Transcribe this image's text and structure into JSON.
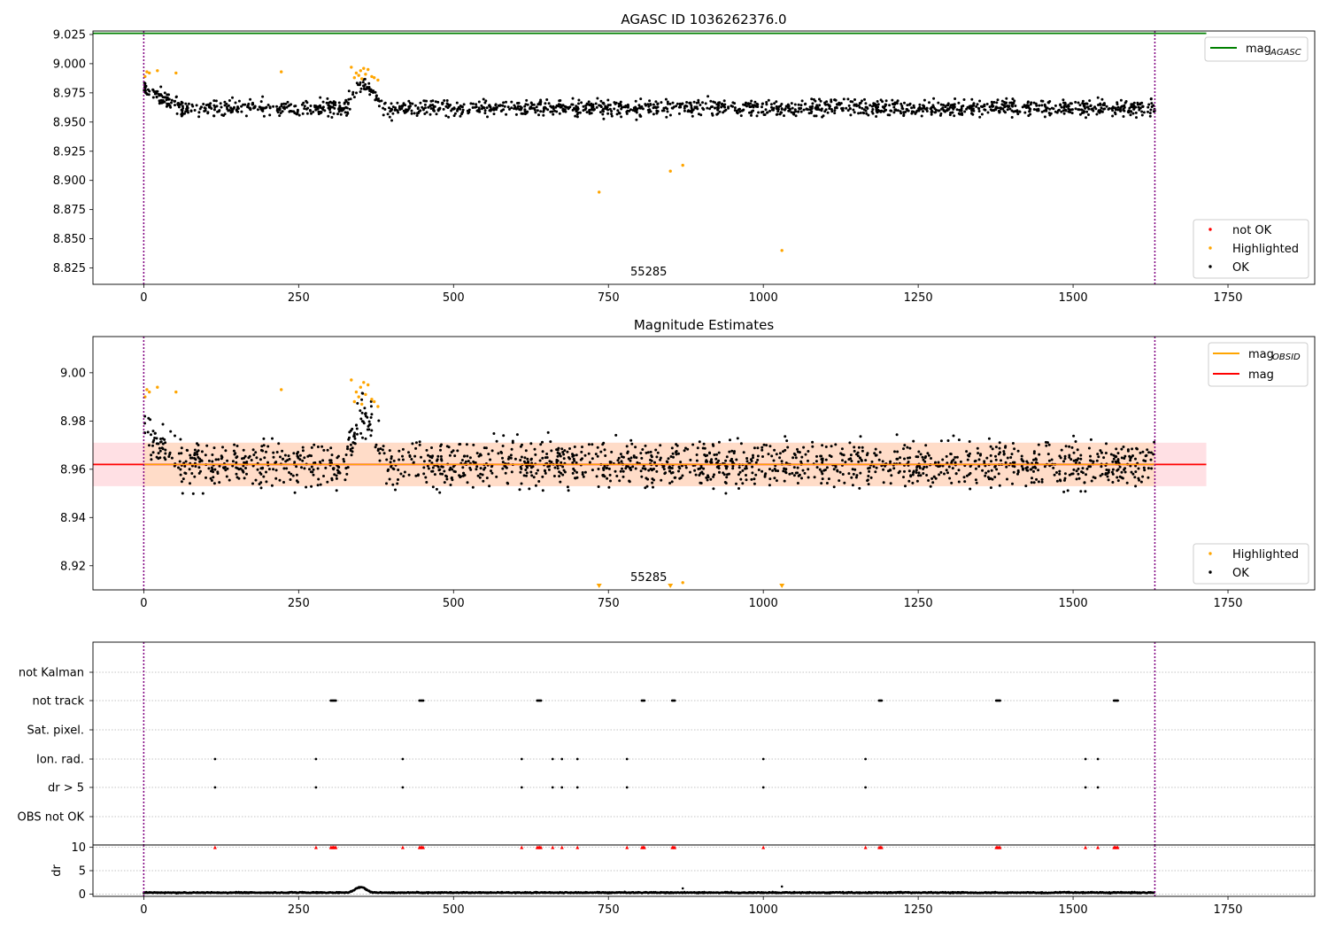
{
  "colors": {
    "ok": "#000000",
    "highlighted": "#ffa500",
    "not_ok": "#ff0000",
    "agasc_line": "#008000",
    "mag_line": "#ff0000",
    "obsid_line": "#ffa500",
    "band_inner": "#ffdcc8",
    "band_outer": "#ffe0e4",
    "vline": "#800080"
  },
  "chart_data": [
    {
      "type": "scatter",
      "title": "AGASC ID 1036262376.0",
      "annotation": "55285",
      "xticks": [
        "0",
        "250",
        "500",
        "750",
        "1000",
        "1250",
        "1500",
        "1750"
      ],
      "yticks": [
        "8.825",
        "8.850",
        "8.875",
        "8.900",
        "8.925",
        "8.950",
        "8.975",
        "9.000",
        "9.025"
      ],
      "xlim": [
        -82,
        1890
      ],
      "ylim": [
        8.811,
        9.028
      ],
      "grid": false,
      "vertical_lines_x": [
        0,
        1632
      ],
      "agasc_mag": 9.026,
      "ok_band": {
        "x_range": [
          0,
          1632
        ],
        "center": 8.962,
        "spread": 0.007
      },
      "highlighted_points": [
        [
          2,
          8.989
        ],
        [
          5,
          8.993
        ],
        [
          9,
          8.992
        ],
        [
          22,
          8.994
        ],
        [
          52,
          8.992
        ],
        [
          222,
          8.993
        ],
        [
          335,
          8.997
        ],
        [
          340,
          8.988
        ],
        [
          343,
          8.992
        ],
        [
          347,
          8.99
        ],
        [
          350,
          8.994
        ],
        [
          352,
          8.987
        ],
        [
          355,
          8.996
        ],
        [
          358,
          8.991
        ],
        [
          362,
          8.995
        ],
        [
          368,
          8.989
        ],
        [
          372,
          8.988
        ],
        [
          378,
          8.986
        ],
        [
          735,
          8.89
        ],
        [
          850,
          8.908
        ],
        [
          870,
          8.913
        ],
        [
          1030,
          8.84
        ]
      ],
      "legend": {
        "placement": "lower-right",
        "entries": [
          {
            "label": "not OK",
            "color": "#ff0000"
          },
          {
            "label": "Highlighted",
            "color": "#ffa500"
          },
          {
            "label": "OK",
            "color": "#000000"
          }
        ]
      },
      "line_legend": {
        "placement": "upper-right",
        "entries": [
          {
            "label": "mag",
            "sub": "AGASC",
            "color": "#008000"
          }
        ]
      }
    },
    {
      "type": "scatter",
      "title": "Magnitude Estimates",
      "annotation": "55285",
      "xticks": [
        "0",
        "250",
        "500",
        "750",
        "1000",
        "1250",
        "1500",
        "1750"
      ],
      "yticks": [
        "8.92",
        "8.94",
        "8.96",
        "8.98",
        "9.00"
      ],
      "xlim": [
        -82,
        1890
      ],
      "ylim": [
        8.91,
        9.015
      ],
      "grid": false,
      "vertical_lines_x": [
        0,
        1632
      ],
      "mag": 8.962,
      "mag_band": {
        "outer": [
          8.953,
          8.971
        ],
        "inner_x_range": [
          0,
          1632
        ]
      },
      "ok_band": {
        "x_range": [
          0,
          1632
        ],
        "center": 8.962,
        "spread": 0.009
      },
      "highlighted_points": [
        [
          2,
          8.99
        ],
        [
          5,
          8.993
        ],
        [
          9,
          8.992
        ],
        [
          22,
          8.994
        ],
        [
          52,
          8.992
        ],
        [
          222,
          8.993
        ],
        [
          335,
          8.997
        ],
        [
          340,
          8.988
        ],
        [
          343,
          8.992
        ],
        [
          347,
          8.99
        ],
        [
          350,
          8.994
        ],
        [
          352,
          8.987
        ],
        [
          355,
          8.996
        ],
        [
          358,
          8.991
        ],
        [
          362,
          8.995
        ],
        [
          368,
          8.989
        ],
        [
          372,
          8.988
        ],
        [
          378,
          8.986
        ],
        [
          870,
          8.913
        ]
      ],
      "offscale_markers_x": [
        735,
        850,
        1030
      ],
      "legend": {
        "placement": "lower-right",
        "entries": [
          {
            "label": "Highlighted",
            "color": "#ffa500"
          },
          {
            "label": "OK",
            "color": "#000000"
          }
        ]
      },
      "line_legend": {
        "placement": "upper-right",
        "entries": [
          {
            "label": "mag",
            "sub": "OBSID",
            "color": "#ffa500"
          },
          {
            "label": "mag",
            "sub": "",
            "color": "#ff0000"
          }
        ]
      }
    },
    {
      "type": "scatter",
      "title": "",
      "xticks": [
        "0",
        "250",
        "500",
        "750",
        "1000",
        "1250",
        "1500",
        "1750"
      ],
      "xlim": [
        -82,
        1890
      ],
      "grid": true,
      "vertical_lines_x": [
        0,
        1632
      ],
      "flag_categories": [
        "not Kalman",
        "not track",
        "Sat. pixel.",
        "Ion. rad.",
        "dr > 5",
        "OBS not OK"
      ],
      "flags": {
        "not Kalman": [],
        "not track": [
          302,
          304,
          306,
          308,
          310,
          445,
          447,
          449,
          451,
          635,
          637,
          639,
          641,
          804,
          806,
          808,
          853,
          855,
          857,
          1187,
          1189,
          1191,
          1376,
          1378,
          1380,
          1382,
          1566,
          1568,
          1570,
          1572
        ],
        "Sat. pixel.": [],
        "Ion. rad.": [
          115,
          278,
          418,
          610,
          660,
          675,
          700,
          780,
          1000,
          1165,
          1520,
          1540
        ],
        "dr > 5": [
          115,
          278,
          418,
          610,
          660,
          675,
          700,
          780,
          1000,
          1165,
          1520,
          1540
        ],
        "OBS not OK": []
      }
    },
    {
      "type": "scatter",
      "title": "",
      "ylabel": "dr",
      "yticks": [
        "0",
        "5",
        "10"
      ],
      "ylim": [
        -0.5,
        10.5
      ],
      "xlim": [
        -82,
        1890
      ],
      "grid": true,
      "xticks": [
        "0",
        "250",
        "500",
        "750",
        "1000",
        "1250",
        "1500",
        "1750"
      ],
      "vertical_lines_x": [
        0,
        1632
      ],
      "dr_baseline": 0.3,
      "dr_bump": {
        "x_range": [
          330,
          380
        ],
        "peak": 1.5
      },
      "dr_outliers": [
        [
          870,
          1.2
        ],
        [
          1030,
          1.6
        ]
      ],
      "dr_clipped_x": [
        115,
        278,
        302,
        304,
        306,
        308,
        310,
        418,
        445,
        447,
        449,
        451,
        610,
        635,
        637,
        639,
        641,
        660,
        675,
        700,
        780,
        804,
        806,
        808,
        853,
        855,
        857,
        1000,
        1165,
        1187,
        1189,
        1191,
        1376,
        1378,
        1380,
        1382,
        1520,
        1540,
        1566,
        1568,
        1570,
        1572
      ],
      "dr_clip_value": 10
    }
  ]
}
